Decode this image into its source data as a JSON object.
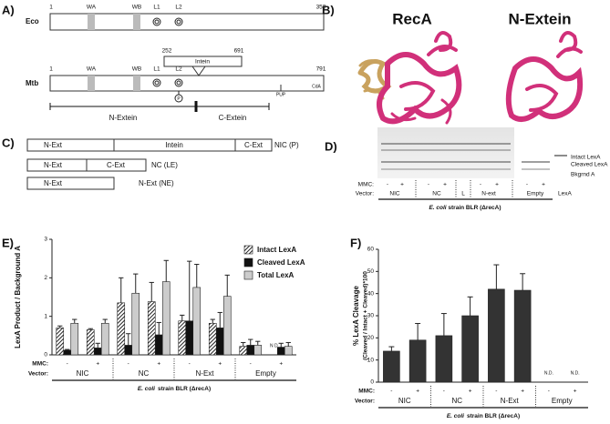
{
  "panels": {
    "A": {
      "label": "A)",
      "eco": {
        "name": "Eco",
        "start": 1,
        "end": 353,
        "wa": "WA",
        "wb": "WB",
        "l1": "L1",
        "l2": "L2"
      },
      "mtb": {
        "name": "Mtb",
        "start": 1,
        "end": 791,
        "wa": "WA",
        "wb": "WB",
        "l1": "L1",
        "l2": "L2",
        "intein": "Intein",
        "intein_start": 252,
        "intein_end": 691,
        "phospho": "P",
        "pup": "PUP",
        "cda": "CdA"
      },
      "n_extein": "N-Extein",
      "c_extein": "C-Extein"
    },
    "B": {
      "label": "B)",
      "left": "RecA",
      "right": "N-Extein"
    },
    "C": {
      "label": "C)",
      "rows": [
        {
          "segments": [
            "N-Ext",
            "Intein",
            "C-Ext"
          ],
          "name": "NIC (P)"
        },
        {
          "segments": [
            "N-Ext",
            "C-Ext"
          ],
          "name": "NC (LE)"
        },
        {
          "segments": [
            "N-Ext"
          ],
          "name": "N-Ext (NE)"
        }
      ]
    },
    "D": {
      "label": "D)",
      "bands": [
        "Intact LexA",
        "Cleaved LexA",
        "Bkgrnd A"
      ],
      "mmc_label": "MMC:",
      "mmc": [
        "-",
        "+",
        "-",
        "+",
        "-",
        "+",
        "-",
        "+"
      ],
      "vector_label": "Vector:",
      "vectors": [
        "NIC",
        "NC",
        "L",
        "N-ext",
        "Empty"
      ],
      "marker_lane": "LexA",
      "strain_italic": "E. coli",
      "strain": "strain BLR (ΔrecA)"
    },
    "E": {
      "label": "E)"
    },
    "F": {
      "label": "F)"
    }
  },
  "chart_data": [
    {
      "type": "bar",
      "ylabel": "LexA Product / Background A",
      "categories": [
        "-",
        "+",
        "-",
        "+",
        "-",
        "+",
        "-",
        "+"
      ],
      "groups": [
        "NIC",
        "NC",
        "N-Ext",
        "Empty"
      ],
      "x_row_label": "MMC:",
      "group_row_label": "Vector:",
      "xlabel_italic": "E. coli",
      "xlabel": "strain BLR (ΔrecA)",
      "ylim": [
        0,
        3
      ],
      "yticks": [
        0,
        1,
        2,
        3
      ],
      "nd_label": "N D",
      "legend": "top-right",
      "series": [
        {
          "name": "Intact LexA",
          "color": "#222222",
          "pattern": "hatch",
          "values": [
            0.7,
            0.65,
            1.35,
            1.38,
            0.88,
            0.82,
            0.22,
            null
          ],
          "errors": [
            0.05,
            0.03,
            0.65,
            0.5,
            0.15,
            0.1,
            0.1,
            null
          ]
        },
        {
          "name": "Cleaved LexA",
          "color": "#111111",
          "values": [
            0.12,
            0.18,
            0.25,
            0.52,
            0.88,
            0.7,
            0.25,
            0.2
          ],
          "errors": [
            0.02,
            0.12,
            0.3,
            0.32,
            1.55,
            0.4,
            0.15,
            0.1
          ]
        },
        {
          "name": "Total LexA",
          "color": "#cccccc",
          "values": [
            0.82,
            0.82,
            1.6,
            1.9,
            1.75,
            1.52,
            0.25,
            0.22
          ],
          "errors": [
            0.1,
            0.1,
            0.5,
            0.55,
            0.6,
            0.55,
            0.1,
            0.1
          ]
        }
      ]
    },
    {
      "type": "bar",
      "ylabel": "% LexA Cleavage",
      "ylabel2": "(Cleaved / Intact + Cleaved)*100",
      "categories": [
        "-",
        "+",
        "-",
        "+",
        "-",
        "+",
        "-",
        "+"
      ],
      "groups": [
        "NIC",
        "NC",
        "N-Ext",
        "Empty"
      ],
      "x_row_label": "MMC:",
      "group_row_label": "Vector:",
      "xlabel_italic": "E. coli",
      "xlabel": "strain BLR (ΔrecA)",
      "ylim": [
        0,
        60
      ],
      "yticks": [
        0,
        10,
        20,
        30,
        40,
        50,
        60
      ],
      "nd_label": "N.D.",
      "color": "#333333",
      "values": [
        14,
        19,
        21,
        30,
        42,
        41.5,
        null,
        null
      ],
      "errors": [
        2,
        7.5,
        10,
        8.5,
        11,
        7.5,
        null,
        null
      ]
    }
  ]
}
